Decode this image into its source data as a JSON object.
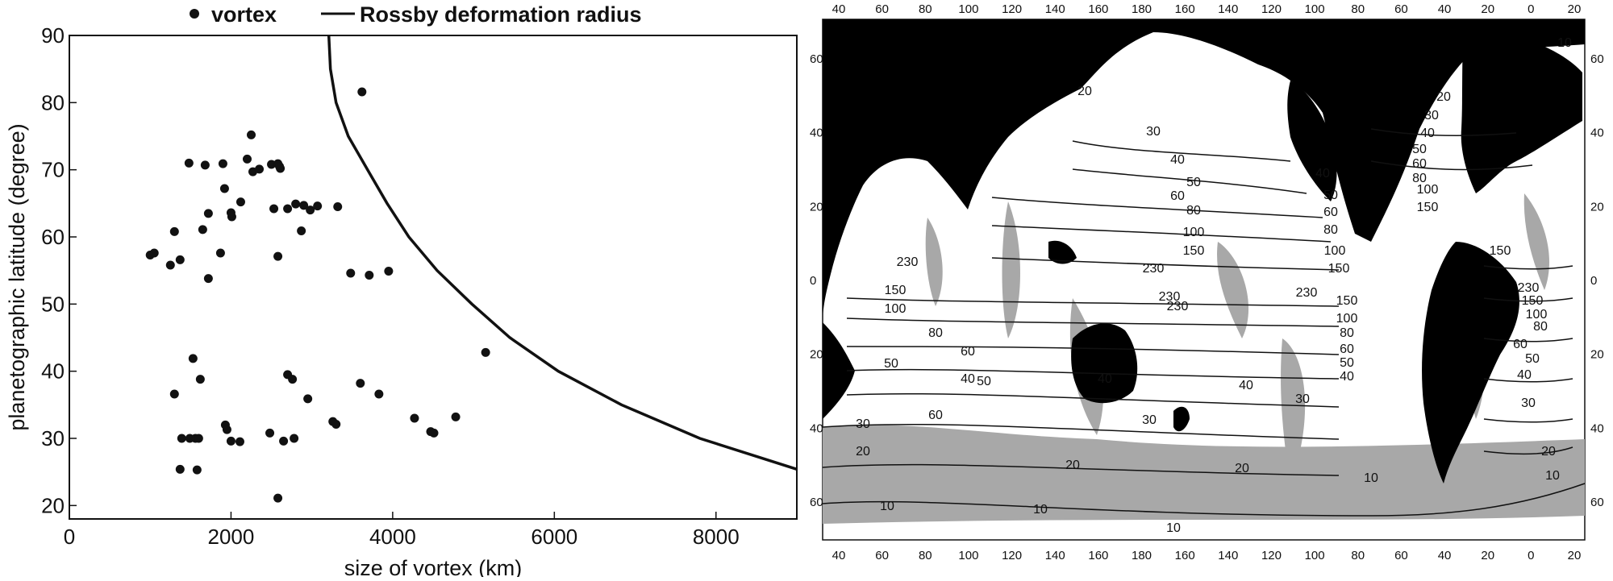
{
  "chart_data": [
    {
      "type": "scatter",
      "title": "",
      "xlabel": "size of vortex (km)",
      "ylabel": "planetographic latitude (degree)",
      "xlim": [
        0,
        9000
      ],
      "ylim": [
        18,
        90
      ],
      "x_ticks": [
        "0",
        "2000",
        "4000",
        "6000",
        "8000"
      ],
      "x_tick_values": [
        0,
        2000,
        4000,
        6000,
        8000
      ],
      "y_ticks": [
        "20",
        "30",
        "40",
        "50",
        "60",
        "70",
        "80",
        "90"
      ],
      "y_tick_values": [
        20,
        30,
        40,
        50,
        60,
        70,
        80,
        90
      ],
      "grid": false,
      "legend_position": "top",
      "legend": [
        {
          "label": "vortex",
          "marker": "dot"
        },
        {
          "label": "Rossby deformation radius",
          "marker": "line"
        }
      ],
      "series": [
        {
          "name": "vortex",
          "points": [
            [
              1000,
              57.3
            ],
            [
              1050,
              57.6
            ],
            [
              1250,
              55.8
            ],
            [
              1300,
              60.8
            ],
            [
              1370,
              56.6
            ],
            [
              1480,
              71.0
            ],
            [
              1680,
              70.7
            ],
            [
              1650,
              61.1
            ],
            [
              1720,
              63.5
            ],
            [
              1720,
              53.8
            ],
            [
              1870,
              57.6
            ],
            [
              1900,
              70.9
            ],
            [
              1920,
              67.2
            ],
            [
              2010,
              63.0
            ],
            [
              2000,
              63.6
            ],
            [
              2120,
              65.2
            ],
            [
              2200,
              71.6
            ],
            [
              2250,
              75.2
            ],
            [
              2270,
              69.7
            ],
            [
              2350,
              70.1
            ],
            [
              2500,
              70.8
            ],
            [
              2580,
              70.9
            ],
            [
              2600,
              70.5
            ],
            [
              2610,
              70.2
            ],
            [
              2530,
              64.2
            ],
            [
              2580,
              57.1
            ],
            [
              2700,
              64.2
            ],
            [
              2800,
              64.9
            ],
            [
              2870,
              60.9
            ],
            [
              2900,
              64.7
            ],
            [
              2980,
              64.0
            ],
            [
              3070,
              64.6
            ],
            [
              3320,
              64.5
            ],
            [
              3480,
              54.6
            ],
            [
              3710,
              54.3
            ],
            [
              3950,
              54.9
            ],
            [
              3620,
              81.6
            ],
            [
              5150,
              42.8
            ],
            [
              1300,
              36.6
            ],
            [
              1370,
              25.4
            ],
            [
              1390,
              30.0
            ],
            [
              1490,
              30.0
            ],
            [
              1560,
              30.0
            ],
            [
              1600,
              30.0
            ],
            [
              1530,
              41.9
            ],
            [
              1580,
              25.3
            ],
            [
              1620,
              38.8
            ],
            [
              1930,
              32.0
            ],
            [
              1950,
              31.3
            ],
            [
              2000,
              29.6
            ],
            [
              2110,
              29.5
            ],
            [
              2480,
              30.8
            ],
            [
              2580,
              21.1
            ],
            [
              2650,
              29.6
            ],
            [
              2700,
              39.5
            ],
            [
              2760,
              38.8
            ],
            [
              2780,
              30.0
            ],
            [
              2950,
              35.9
            ],
            [
              3260,
              32.5
            ],
            [
              3300,
              32.1
            ],
            [
              3600,
              38.2
            ],
            [
              3830,
              36.6
            ],
            [
              4270,
              33.0
            ],
            [
              4470,
              31.0
            ],
            [
              4510,
              30.8
            ],
            [
              4780,
              33.2
            ]
          ]
        },
        {
          "name": "Rossby deformation radius",
          "line": [
            [
              3210,
              90
            ],
            [
              3230,
              85
            ],
            [
              3300,
              80
            ],
            [
              3450,
              75
            ],
            [
              3690,
              70
            ],
            [
              3930,
              65
            ],
            [
              4200,
              60
            ],
            [
              4550,
              55
            ],
            [
              4980,
              50
            ],
            [
              5450,
              45
            ],
            [
              6050,
              40
            ],
            [
              6830,
              35
            ],
            [
              7800,
              30
            ],
            [
              9000,
              25.4
            ]
          ]
        }
      ]
    },
    {
      "type": "map",
      "top_ticks": [
        "40",
        "60",
        "80",
        "100",
        "120",
        "140",
        "160",
        "180",
        "160",
        "140",
        "120",
        "100",
        "80",
        "60",
        "40",
        "20",
        "0",
        "20"
      ],
      "bottom_ticks": [
        "40",
        "60",
        "80",
        "100",
        "120",
        "140",
        "160",
        "180",
        "160",
        "140",
        "120",
        "100",
        "80",
        "60",
        "40",
        "20",
        "0",
        "20"
      ],
      "left_ticks": [
        "60",
        "40",
        "20",
        "0",
        "20",
        "40",
        "60"
      ],
      "right_ticks": [
        "60",
        "40",
        "20",
        "0",
        "20",
        "40",
        "60"
      ],
      "contour_labels": [
        "20",
        "30",
        "40",
        "40",
        "50",
        "50",
        "60",
        "60",
        "80",
        "80",
        "100",
        "100",
        "150",
        "150",
        "230",
        "230",
        "230",
        "230",
        "150",
        "100",
        "80",
        "60",
        "50",
        "40",
        "40",
        "30",
        "30",
        "20",
        "20",
        "10",
        "10",
        "10",
        "10",
        "230",
        "150",
        "100",
        "80",
        "60",
        "50",
        "40",
        "30",
        "20",
        "20",
        "40",
        "50",
        "60",
        "150",
        "100",
        "80",
        "60",
        "50",
        "40",
        "30",
        "20",
        "10",
        "230",
        "150",
        "100",
        "80",
        "60",
        "50",
        "40",
        "30",
        "10",
        "150"
      ]
    }
  ]
}
